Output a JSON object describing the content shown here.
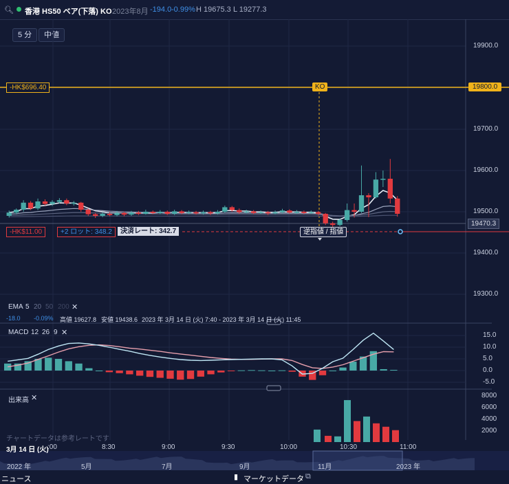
{
  "header": {
    "instrument": "香港 HS50 ベア(下落) KO",
    "month": "2023年8月",
    "change": "-194.0",
    "change_pct": "-0.99%",
    "high": "H 19675.3",
    "low": "L 19277.3"
  },
  "toolbar": {
    "interval": "5 分",
    "price_type": "中値"
  },
  "price_axis": {
    "ticks": [
      "19900.0",
      "19800.0",
      "19700.0",
      "19600.0",
      "19500.0",
      "19400.0",
      "19300.0"
    ],
    "current": "19470.3"
  },
  "ko": {
    "label": "KO",
    "price_tag": "19800.0",
    "pl": "-HK$696.40"
  },
  "position": {
    "pl": "-HK$11.00",
    "lots": "+2 ロット: 348.2",
    "settlement": "決済レート: 342.7",
    "stop_limit": "逆指値 / 指値"
  },
  "ema": {
    "title": "EMA",
    "periods": [
      "5",
      "20",
      "50",
      "200"
    ],
    "change": "-18.0",
    "change_pct": "-0.09%",
    "high": "高値 19627.8",
    "low": "安値 19438.6",
    "range": "2023 年 3月 14 日 (火) 7:40 - 2023 年 3月 14 日 (火) 11:45"
  },
  "macd": {
    "title": "MACD",
    "params": [
      "12",
      "26",
      "9"
    ],
    "ticks": [
      "15.0",
      "10.0",
      "5.0",
      "0.0",
      "-5.0"
    ]
  },
  "volume": {
    "title": "出来高",
    "ticks": [
      "8000",
      "6000",
      "4000",
      "2000"
    ]
  },
  "footnote": "チャートデータは参考レートです",
  "time_axis": {
    "date": "3月 14 日 (火)",
    "labels": [
      ":00",
      "8:30",
      "9:00",
      "9:30",
      "10:00",
      "10:30",
      "11:00"
    ]
  },
  "overview_axis": {
    "labels": [
      "2022 年",
      "5月",
      "7月",
      "9月",
      "11月",
      "2023 年"
    ]
  },
  "bottom_tabs": {
    "news": "ニュース",
    "market": "マーケットデータ"
  },
  "colors": {
    "up": "#48a9a6",
    "down": "#e23a3f",
    "ko_line": "#f0b21a",
    "price_line": "#e23a3f"
  }
}
